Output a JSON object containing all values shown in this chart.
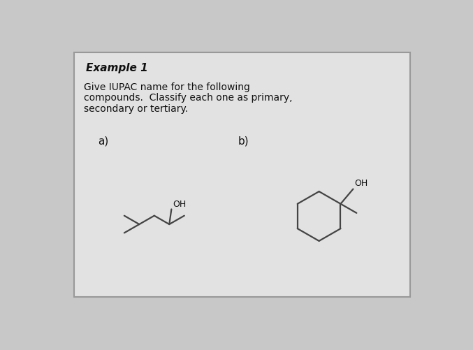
{
  "bg_color": "#c8c8c8",
  "card_color": "#e2e2e2",
  "card_edge_color": "#999999",
  "title": "Example 1",
  "body_lines": [
    "Give IUPAC name for the following",
    "compounds.  Classify each one as primary,",
    "secondary or tertiary."
  ],
  "label_a": "a)",
  "label_b": "b)",
  "line_color": "#444444",
  "text_color": "#111111",
  "title_fontsize": 11,
  "body_fontsize": 10,
  "label_fontsize": 11,
  "oh_fontsize": 9
}
